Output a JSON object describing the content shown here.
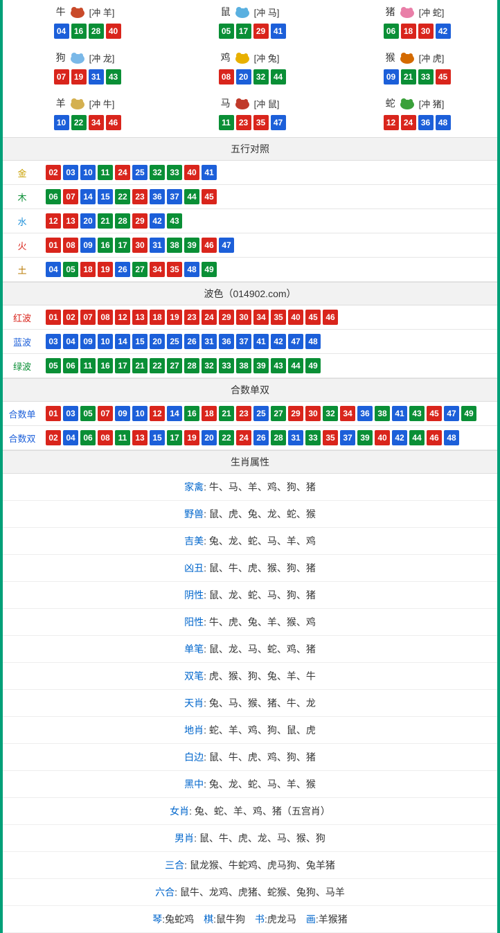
{
  "colors": {
    "red": "#d9251c",
    "blue": "#1c5fd9",
    "green": "#0a8f36",
    "border": "#00a078",
    "headBg": "#f2f2f2"
  },
  "ballColorMap": {
    "red": [
      "01",
      "02",
      "07",
      "08",
      "12",
      "13",
      "18",
      "19",
      "23",
      "24",
      "29",
      "30",
      "34",
      "35",
      "40",
      "45",
      "46"
    ],
    "blue": [
      "03",
      "04",
      "09",
      "10",
      "14",
      "15",
      "20",
      "25",
      "26",
      "31",
      "36",
      "37",
      "41",
      "42",
      "47",
      "48"
    ],
    "green": [
      "05",
      "06",
      "11",
      "16",
      "17",
      "21",
      "22",
      "27",
      "28",
      "32",
      "33",
      "38",
      "39",
      "43",
      "44",
      "49"
    ]
  },
  "zodiac": [
    {
      "name": "牛",
      "clash": "[冲 羊]",
      "balls": [
        "04",
        "16",
        "28",
        "40"
      ],
      "iconColor": "#c94a2a"
    },
    {
      "name": "鼠",
      "clash": "[冲 马]",
      "balls": [
        "05",
        "17",
        "29",
        "41"
      ],
      "iconColor": "#5ab0e0"
    },
    {
      "name": "猪",
      "clash": "[冲 蛇]",
      "balls": [
        "06",
        "18",
        "30",
        "42"
      ],
      "iconColor": "#e97fa8"
    },
    {
      "name": "狗",
      "clash": "[冲 龙]",
      "balls": [
        "07",
        "19",
        "31",
        "43"
      ],
      "iconColor": "#7ab8e8"
    },
    {
      "name": "鸡",
      "clash": "[冲 兔]",
      "balls": [
        "08",
        "20",
        "32",
        "44"
      ],
      "iconColor": "#e8b000"
    },
    {
      "name": "猴",
      "clash": "[冲 虎]",
      "balls": [
        "09",
        "21",
        "33",
        "45"
      ],
      "iconColor": "#d46a00"
    },
    {
      "name": "羊",
      "clash": "[冲 牛]",
      "balls": [
        "10",
        "22",
        "34",
        "46"
      ],
      "iconColor": "#d4b050"
    },
    {
      "name": "马",
      "clash": "[冲 鼠]",
      "balls": [
        "11",
        "23",
        "35",
        "47"
      ],
      "iconColor": "#c03a2a"
    },
    {
      "name": "蛇",
      "clash": "[冲 猪]",
      "balls": [
        "12",
        "24",
        "36",
        "48"
      ],
      "iconColor": "#3aa03a"
    }
  ],
  "wuxing": {
    "title": "五行对照",
    "rows": [
      {
        "label": "金",
        "labelClass": "lbl-gold",
        "balls": [
          "02",
          "03",
          "10",
          "11",
          "24",
          "25",
          "32",
          "33",
          "40",
          "41"
        ]
      },
      {
        "label": "木",
        "labelClass": "lbl-wood",
        "balls": [
          "06",
          "07",
          "14",
          "15",
          "22",
          "23",
          "36",
          "37",
          "44",
          "45"
        ]
      },
      {
        "label": "水",
        "labelClass": "lbl-water",
        "balls": [
          "12",
          "13",
          "20",
          "21",
          "28",
          "29",
          "42",
          "43"
        ]
      },
      {
        "label": "火",
        "labelClass": "lbl-fire",
        "balls": [
          "01",
          "08",
          "09",
          "16",
          "17",
          "30",
          "31",
          "38",
          "39",
          "46",
          "47"
        ]
      },
      {
        "label": "土",
        "labelClass": "lbl-earth",
        "balls": [
          "04",
          "05",
          "18",
          "19",
          "26",
          "27",
          "34",
          "35",
          "48",
          "49"
        ]
      }
    ]
  },
  "bose": {
    "title": "波色（014902.com）",
    "rows": [
      {
        "label": "红波",
        "labelClass": "lbl-red",
        "balls": [
          "01",
          "02",
          "07",
          "08",
          "12",
          "13",
          "18",
          "19",
          "23",
          "24",
          "29",
          "30",
          "34",
          "35",
          "40",
          "45",
          "46"
        ]
      },
      {
        "label": "蓝波",
        "labelClass": "lbl-blue",
        "balls": [
          "03",
          "04",
          "09",
          "10",
          "14",
          "15",
          "20",
          "25",
          "26",
          "31",
          "36",
          "37",
          "41",
          "42",
          "47",
          "48"
        ]
      },
      {
        "label": "绿波",
        "labelClass": "lbl-green",
        "balls": [
          "05",
          "06",
          "11",
          "16",
          "17",
          "21",
          "22",
          "27",
          "28",
          "32",
          "33",
          "38",
          "39",
          "43",
          "44",
          "49"
        ]
      }
    ]
  },
  "heshu": {
    "title": "合数单双",
    "rows": [
      {
        "label": "合数单",
        "labelClass": "lbl-heshu",
        "balls": [
          "01",
          "03",
          "05",
          "07",
          "09",
          "10",
          "12",
          "14",
          "16",
          "18",
          "21",
          "23",
          "25",
          "27",
          "29",
          "30",
          "32",
          "34",
          "36",
          "38",
          "41",
          "43",
          "45",
          "47",
          "49"
        ]
      },
      {
        "label": "合数双",
        "labelClass": "lbl-heshu",
        "balls": [
          "02",
          "04",
          "06",
          "08",
          "11",
          "13",
          "15",
          "17",
          "19",
          "20",
          "22",
          "24",
          "26",
          "28",
          "31",
          "33",
          "35",
          "37",
          "39",
          "40",
          "42",
          "44",
          "46",
          "48"
        ]
      }
    ]
  },
  "shengxiao": {
    "title": "生肖属性",
    "rows": [
      {
        "label": "家禽",
        "labelColor": "#0066cc",
        "value": "牛、马、羊、鸡、狗、猪"
      },
      {
        "label": "野兽",
        "labelColor": "#0066cc",
        "value": "鼠、虎、兔、龙、蛇、猴"
      },
      {
        "label": "吉美",
        "labelColor": "#0066cc",
        "value": "兔、龙、蛇、马、羊、鸡"
      },
      {
        "label": "凶丑",
        "labelColor": "#0066cc",
        "value": "鼠、牛、虎、猴、狗、猪"
      },
      {
        "label": "阴性",
        "labelColor": "#0066cc",
        "value": "鼠、龙、蛇、马、狗、猪"
      },
      {
        "label": "阳性",
        "labelColor": "#0066cc",
        "value": "牛、虎、兔、羊、猴、鸡"
      },
      {
        "label": "单笔",
        "labelColor": "#0066cc",
        "value": "鼠、龙、马、蛇、鸡、猪"
      },
      {
        "label": "双笔",
        "labelColor": "#0066cc",
        "value": "虎、猴、狗、兔、羊、牛"
      },
      {
        "label": "天肖",
        "labelColor": "#0066cc",
        "value": "兔、马、猴、猪、牛、龙"
      },
      {
        "label": "地肖",
        "labelColor": "#0066cc",
        "value": "蛇、羊、鸡、狗、鼠、虎"
      },
      {
        "label": "白边",
        "labelColor": "#0066cc",
        "value": "鼠、牛、虎、鸡、狗、猪"
      },
      {
        "label": "黑中",
        "labelColor": "#0066cc",
        "value": "兔、龙、蛇、马、羊、猴"
      },
      {
        "label": "女肖",
        "labelColor": "#0066cc",
        "value": "兔、蛇、羊、鸡、猪（五宫肖）"
      },
      {
        "label": "男肖",
        "labelColor": "#0066cc",
        "value": "鼠、牛、虎、龙、马、猴、狗"
      },
      {
        "label": "三合",
        "labelColor": "#0066cc",
        "value": "鼠龙猴、牛蛇鸡、虎马狗、兔羊猪"
      },
      {
        "label": "六合",
        "labelColor": "#0066cc",
        "value": "鼠牛、龙鸡、虎猪、蛇猴、兔狗、马羊"
      }
    ]
  },
  "qinqi": [
    {
      "label": "琴",
      "value": "兔蛇鸡"
    },
    {
      "label": "棋",
      "value": "鼠牛狗"
    },
    {
      "label": "书",
      "value": "虎龙马"
    },
    {
      "label": "画",
      "value": "羊猴猪"
    }
  ]
}
